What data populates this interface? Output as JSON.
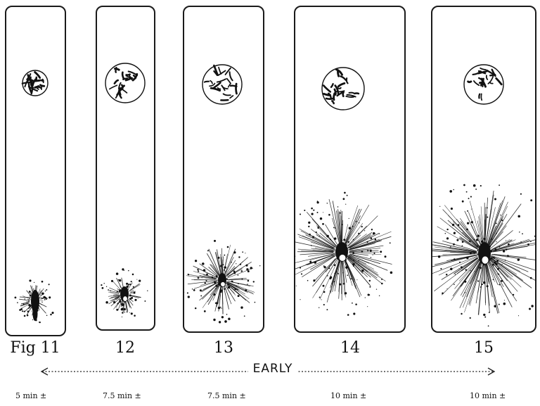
{
  "figures": [
    {
      "number": "Fig 11",
      "time": "5 min ±",
      "splash": 1
    },
    {
      "number": "12",
      "time": "7.5 min ±",
      "splash": 2
    },
    {
      "number": "13",
      "time": "7.5 min ±",
      "splash": 3
    },
    {
      "number": "14",
      "time": "10 min ±",
      "splash": 4
    },
    {
      "number": "15",
      "time": "10 min ±",
      "splash": 5
    }
  ],
  "range_label": "EARLY",
  "colors": {
    "ink": "#111111",
    "paper": "#ffffff"
  }
}
